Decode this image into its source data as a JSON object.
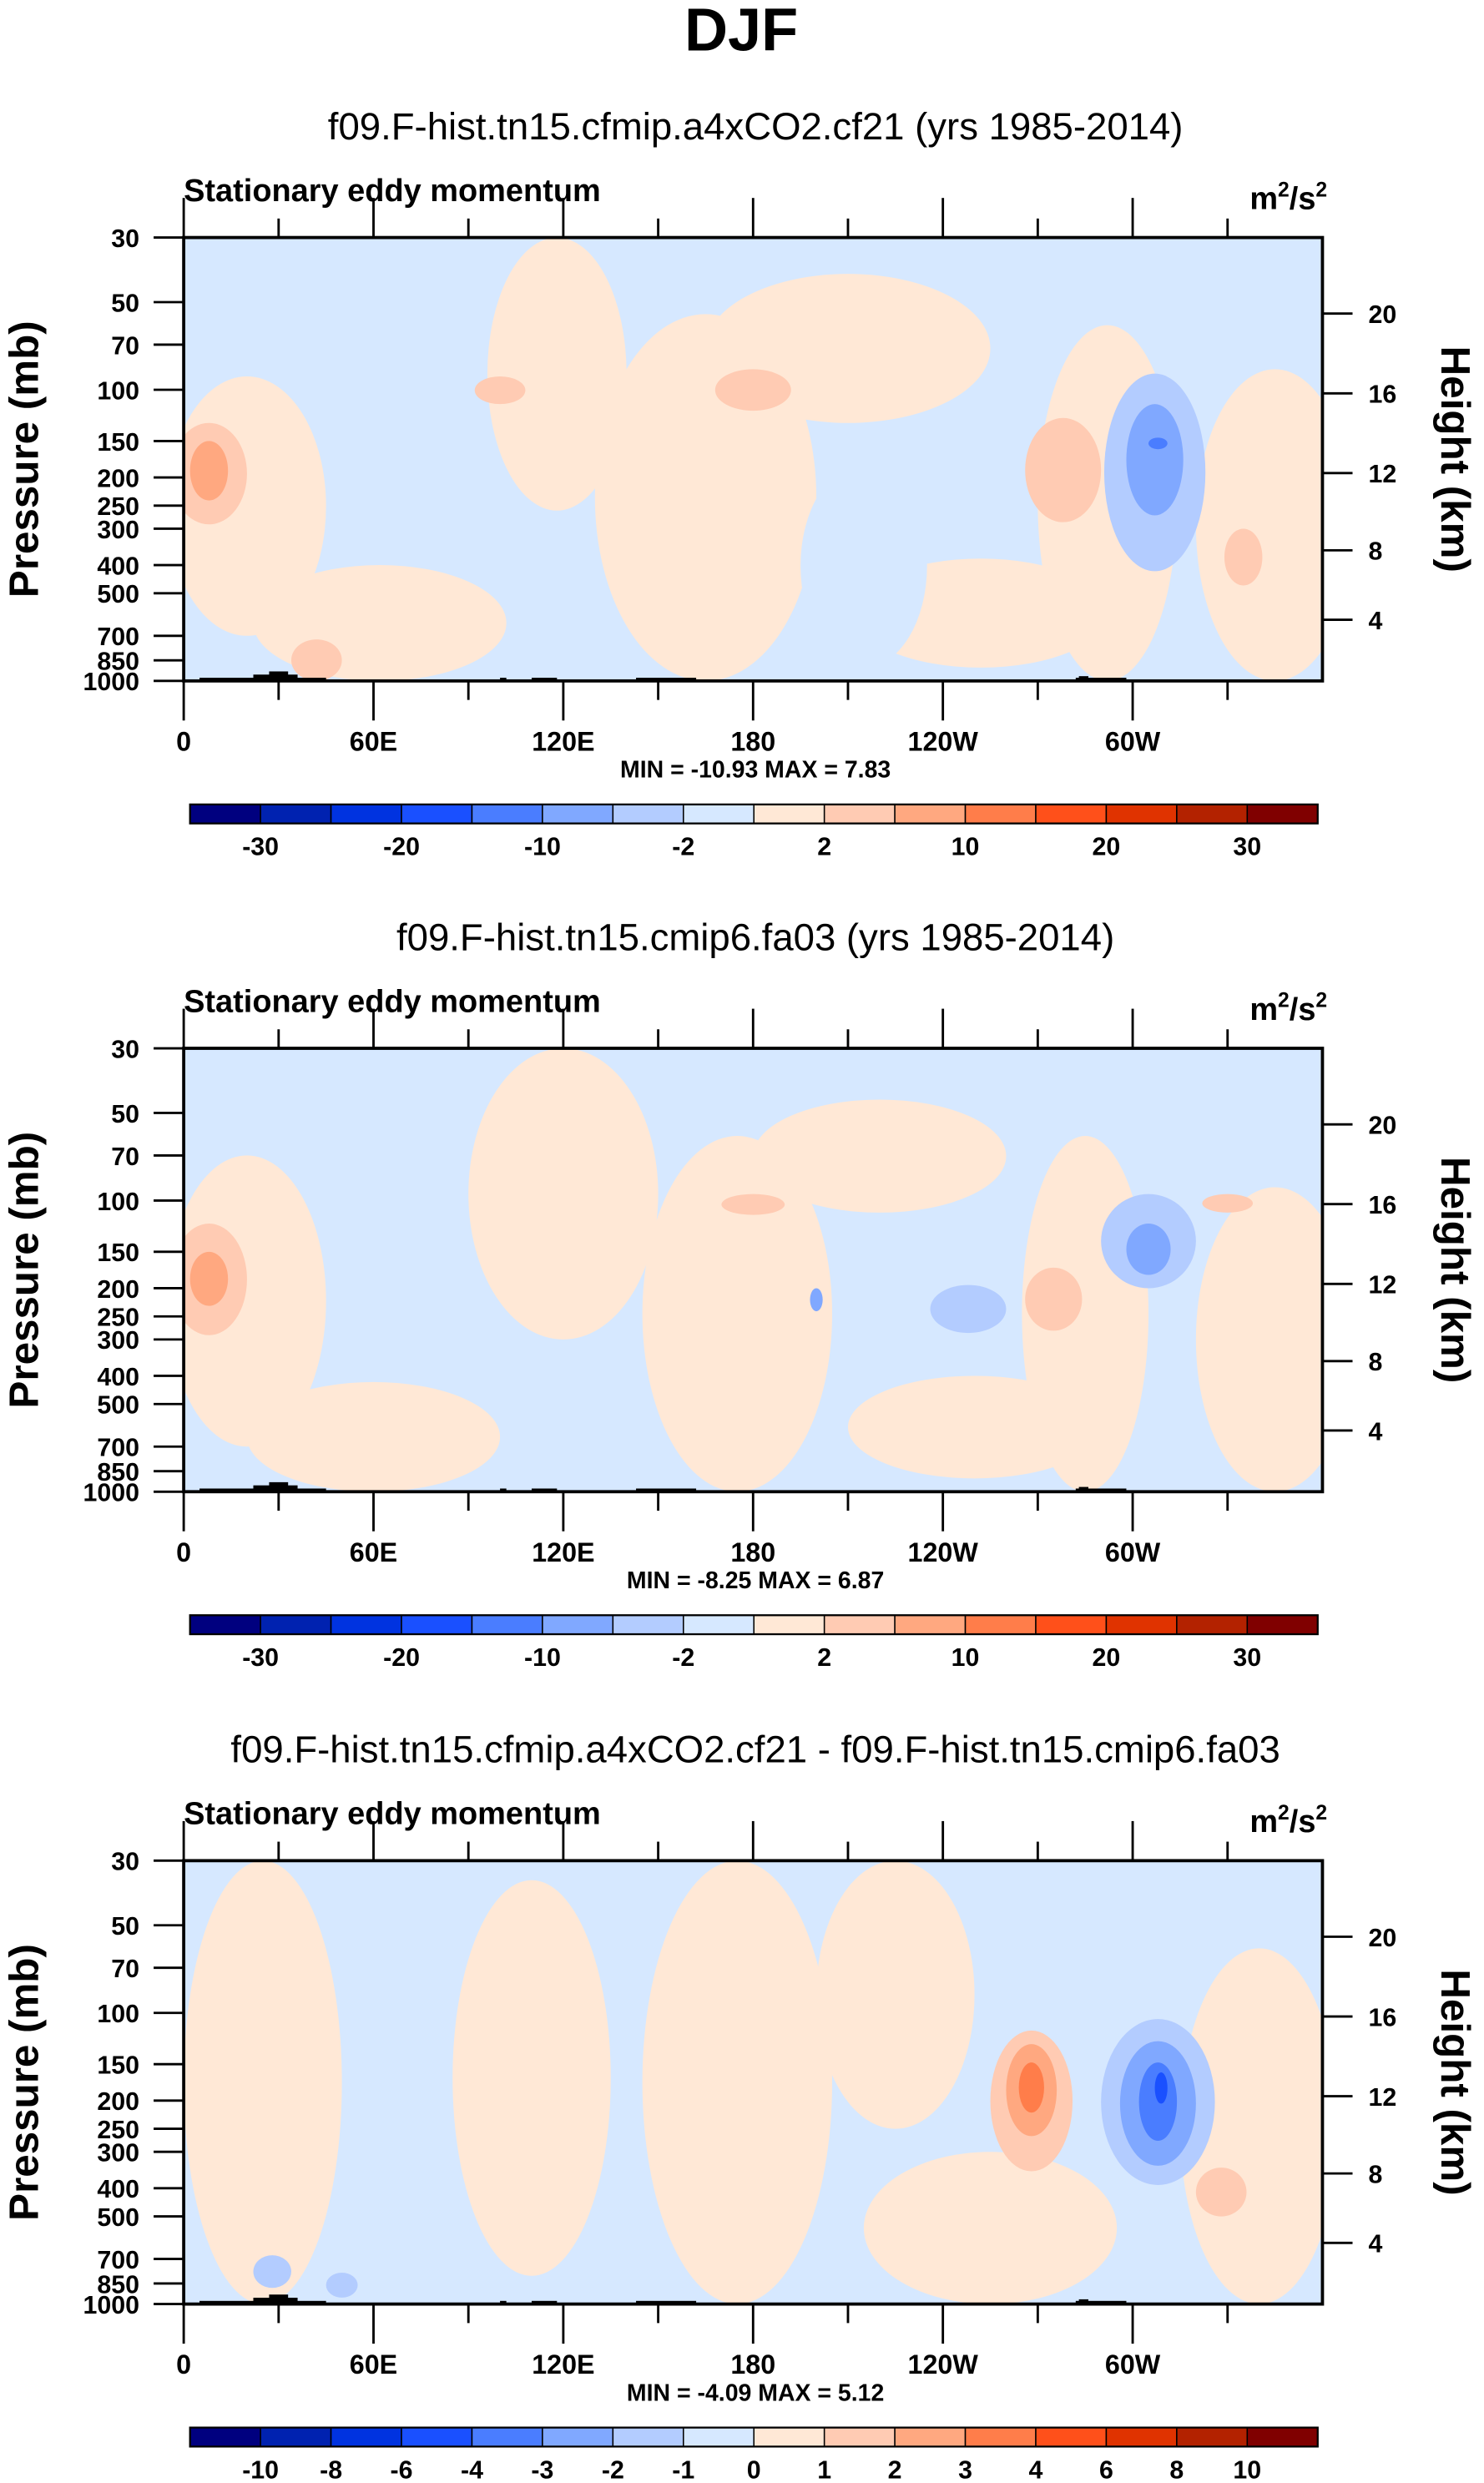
{
  "main_title": "DJF",
  "colors": {
    "background_level": "#d6e8ff",
    "terrain": "#000000",
    "colormap": [
      "#00007f",
      "#0022b0",
      "#0033e0",
      "#1a50ff",
      "#4a7dff",
      "#80a8ff",
      "#b3ccff",
      "#d6e8ff",
      "#ffe8d6",
      "#ffcbb3",
      "#ffa880",
      "#ff7d4a",
      "#ff501a",
      "#e03300",
      "#b32200",
      "#800000"
    ]
  },
  "chart_data": [
    {
      "type": "heatmap",
      "title": "f09.F-hist.tn15.cfmip.a4xCO2.cf21 (yrs 1985-2014)",
      "left_label": "Stationary eddy momentum",
      "units_label": "m",
      "units_sup1": "2",
      "units_mid": "/s",
      "units_sup2": "2",
      "ylabel": "Pressure (mb)",
      "y2label": "Height (km)",
      "x_ticks": [
        {
          "lon": 0,
          "label": "0"
        },
        {
          "lon": 60,
          "label": "60E"
        },
        {
          "lon": 120,
          "label": "120E"
        },
        {
          "lon": 180,
          "label": "180"
        },
        {
          "lon": 240,
          "label": "120W"
        },
        {
          "lon": 300,
          "label": "60W"
        }
      ],
      "y_ticks": [
        "30",
        "50",
        "70",
        "100",
        "150",
        "200",
        "250",
        "300",
        "400",
        "500",
        "700",
        "850",
        "1000"
      ],
      "y2_ticks": [
        "20",
        "16",
        "12",
        "8",
        "4"
      ],
      "xlim": [
        0,
        360
      ],
      "ylim": [
        1000,
        30
      ],
      "stats": "MIN = -10.93  MAX =   7.83",
      "colorbar_labels": [
        "",
        "-30",
        "",
        "-20",
        "",
        "-10",
        "",
        "-2",
        "",
        "2",
        "",
        "10",
        "",
        "20",
        "",
        "30"
      ],
      "features": [
        {
          "lon": 20,
          "dlon": 25,
          "p1": 90,
          "p2": 700,
          "level": 8
        },
        {
          "lon": 118,
          "dlon": 22,
          "p1": 30,
          "p2": 260,
          "level": 8
        },
        {
          "lon": 165,
          "dlon": 35,
          "p1": 55,
          "p2": 1000,
          "level": 8
        },
        {
          "lon": 210,
          "dlon": 45,
          "p1": 40,
          "p2": 130,
          "level": 8
        },
        {
          "lon": 252,
          "dlon": 40,
          "p1": 380,
          "p2": 900,
          "level": 8
        },
        {
          "lon": 292,
          "dlon": 22,
          "p1": 60,
          "p2": 1000,
          "level": 8
        },
        {
          "lon": 345,
          "dlon": 25,
          "p1": 85,
          "p2": 1000,
          "level": 8
        },
        {
          "lon": 62,
          "dlon": 40,
          "p1": 400,
          "p2": 1000,
          "level": 8
        },
        {
          "lon": 215,
          "dlon": 20,
          "p1": 180,
          "p2": 900,
          "level": 7
        },
        {
          "lon": 8,
          "dlon": 12,
          "p1": 130,
          "p2": 290,
          "level": 9
        },
        {
          "lon": 100,
          "dlon": 8,
          "p1": 90,
          "p2": 112,
          "level": 9
        },
        {
          "lon": 180,
          "dlon": 12,
          "p1": 85,
          "p2": 118,
          "level": 9
        },
        {
          "lon": 278,
          "dlon": 12,
          "p1": 125,
          "p2": 285,
          "level": 9
        },
        {
          "lon": 335,
          "dlon": 6,
          "p1": 300,
          "p2": 470,
          "level": 9
        },
        {
          "lon": 42,
          "dlon": 8,
          "p1": 720,
          "p2": 1000,
          "level": 9
        },
        {
          "lon": 8,
          "dlon": 6,
          "p1": 150,
          "p2": 240,
          "level": 10
        },
        {
          "lon": 307,
          "dlon": 16,
          "p1": 88,
          "p2": 420,
          "level": 6
        },
        {
          "lon": 307,
          "dlon": 9,
          "p1": 112,
          "p2": 270,
          "level": 5
        },
        {
          "lon": 308,
          "dlon": 3,
          "p1": 146,
          "p2": 160,
          "level": 4
        }
      ]
    },
    {
      "type": "heatmap",
      "title": "f09.F-hist.tn15.cmip6.fa03 (yrs 1985-2014)",
      "left_label": "Stationary eddy momentum",
      "units_label": "m",
      "units_sup1": "2",
      "units_mid": "/s",
      "units_sup2": "2",
      "ylabel": "Pressure (mb)",
      "y2label": "Height (km)",
      "x_ticks": [
        {
          "lon": 0,
          "label": "0"
        },
        {
          "lon": 60,
          "label": "60E"
        },
        {
          "lon": 120,
          "label": "120E"
        },
        {
          "lon": 180,
          "label": "180"
        },
        {
          "lon": 240,
          "label": "120W"
        },
        {
          "lon": 300,
          "label": "60W"
        }
      ],
      "y_ticks": [
        "30",
        "50",
        "70",
        "100",
        "150",
        "200",
        "250",
        "300",
        "400",
        "500",
        "700",
        "850",
        "1000"
      ],
      "y2_ticks": [
        "20",
        "16",
        "12",
        "8",
        "4"
      ],
      "xlim": [
        0,
        360
      ],
      "ylim": [
        1000,
        30
      ],
      "stats": "MIN = -8.25  MAX =   6.87",
      "colorbar_labels": [
        "",
        "-30",
        "",
        "-20",
        "",
        "-10",
        "",
        "-2",
        "",
        "2",
        "",
        "10",
        "",
        "20",
        "",
        "30"
      ],
      "features": [
        {
          "lon": 20,
          "dlon": 25,
          "p1": 70,
          "p2": 700,
          "level": 8
        },
        {
          "lon": 120,
          "dlon": 30,
          "p1": 30,
          "p2": 300,
          "level": 8
        },
        {
          "lon": 175,
          "dlon": 30,
          "p1": 60,
          "p2": 1000,
          "level": 8
        },
        {
          "lon": 220,
          "dlon": 40,
          "p1": 45,
          "p2": 110,
          "level": 8
        },
        {
          "lon": 250,
          "dlon": 40,
          "p1": 400,
          "p2": 900,
          "level": 8
        },
        {
          "lon": 285,
          "dlon": 20,
          "p1": 60,
          "p2": 1000,
          "level": 8
        },
        {
          "lon": 345,
          "dlon": 25,
          "p1": 90,
          "p2": 1000,
          "level": 8
        },
        {
          "lon": 60,
          "dlon": 40,
          "p1": 420,
          "p2": 1000,
          "level": 8
        },
        {
          "lon": 8,
          "dlon": 12,
          "p1": 120,
          "p2": 290,
          "level": 9
        },
        {
          "lon": 275,
          "dlon": 9,
          "p1": 170,
          "p2": 280,
          "level": 9
        },
        {
          "lon": 330,
          "dlon": 8,
          "p1": 95,
          "p2": 110,
          "level": 9
        },
        {
          "lon": 180,
          "dlon": 10,
          "p1": 95,
          "p2": 112,
          "level": 9
        },
        {
          "lon": 8,
          "dlon": 6,
          "p1": 150,
          "p2": 230,
          "level": 10
        },
        {
          "lon": 305,
          "dlon": 15,
          "p1": 95,
          "p2": 200,
          "level": 6
        },
        {
          "lon": 248,
          "dlon": 12,
          "p1": 195,
          "p2": 285,
          "level": 6
        },
        {
          "lon": 305,
          "dlon": 7,
          "p1": 120,
          "p2": 180,
          "level": 5
        },
        {
          "lon": 200,
          "dlon": 2,
          "p1": 200,
          "p2": 240,
          "level": 5
        }
      ]
    },
    {
      "type": "heatmap",
      "title": "f09.F-hist.tn15.cfmip.a4xCO2.cf21 - f09.F-hist.tn15.cmip6.fa03",
      "left_label": "Stationary eddy momentum",
      "units_label": "m",
      "units_sup1": "2",
      "units_mid": "/s",
      "units_sup2": "2",
      "ylabel": "Pressure (mb)",
      "y2label": "Height (km)",
      "x_ticks": [
        {
          "lon": 0,
          "label": "0"
        },
        {
          "lon": 60,
          "label": "60E"
        },
        {
          "lon": 120,
          "label": "120E"
        },
        {
          "lon": 180,
          "label": "180"
        },
        {
          "lon": 240,
          "label": "120W"
        },
        {
          "lon": 300,
          "label": "60W"
        }
      ],
      "y_ticks": [
        "30",
        "50",
        "70",
        "100",
        "150",
        "200",
        "250",
        "300",
        "400",
        "500",
        "700",
        "850",
        "1000"
      ],
      "y2_ticks": [
        "20",
        "16",
        "12",
        "8",
        "4"
      ],
      "xlim": [
        0,
        360
      ],
      "ylim": [
        1000,
        30
      ],
      "stats": "MIN = -4.09  MAX =   5.12",
      "colorbar_labels": [
        "",
        "-10",
        "-8",
        "-6",
        "-4",
        "-3",
        "-2",
        "-1",
        "0",
        "1",
        "2",
        "3",
        "4",
        "6",
        "8",
        "10"
      ],
      "features": [
        {
          "lon": 25,
          "dlon": 25,
          "p1": 30,
          "p2": 1000,
          "level": 8
        },
        {
          "lon": 110,
          "dlon": 25,
          "p1": 35,
          "p2": 800,
          "level": 8
        },
        {
          "lon": 175,
          "dlon": 30,
          "p1": 30,
          "p2": 1000,
          "level": 8
        },
        {
          "lon": 225,
          "dlon": 25,
          "p1": 30,
          "p2": 250,
          "level": 8
        },
        {
          "lon": 255,
          "dlon": 40,
          "p1": 300,
          "p2": 1000,
          "level": 8
        },
        {
          "lon": 340,
          "dlon": 25,
          "p1": 60,
          "p2": 1000,
          "level": 8
        },
        {
          "lon": 268,
          "dlon": 13,
          "p1": 115,
          "p2": 350,
          "level": 9
        },
        {
          "lon": 268,
          "dlon": 8,
          "p1": 128,
          "p2": 265,
          "level": 10
        },
        {
          "lon": 268,
          "dlon": 4,
          "p1": 148,
          "p2": 220,
          "level": 11
        },
        {
          "lon": 328,
          "dlon": 8,
          "p1": 340,
          "p2": 500,
          "level": 9
        },
        {
          "lon": 308,
          "dlon": 18,
          "p1": 105,
          "p2": 390,
          "level": 6
        },
        {
          "lon": 308,
          "dlon": 12,
          "p1": 125,
          "p2": 335,
          "level": 5
        },
        {
          "lon": 308,
          "dlon": 6,
          "p1": 148,
          "p2": 275,
          "level": 4
        },
        {
          "lon": 309,
          "dlon": 2,
          "p1": 160,
          "p2": 205,
          "level": 3
        },
        {
          "lon": 28,
          "dlon": 6,
          "p1": 680,
          "p2": 880,
          "level": 6
        },
        {
          "lon": 50,
          "dlon": 5,
          "p1": 780,
          "p2": 950,
          "level": 6
        }
      ]
    }
  ]
}
